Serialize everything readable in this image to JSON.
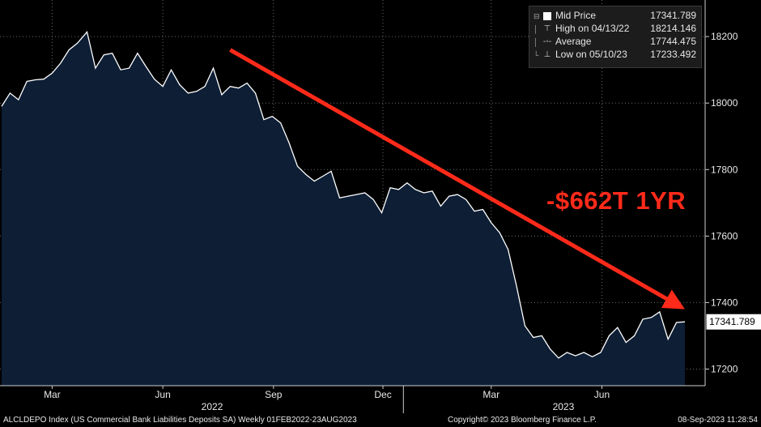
{
  "chart_data": {
    "type": "area",
    "x_range": [
      "2022-02-01",
      "2023-08-23"
    ],
    "ylim": [
      17150,
      18310
    ],
    "grid": true,
    "y_ticks": [
      17200,
      17400,
      17600,
      17800,
      18000,
      18200
    ],
    "y_tick_labels": [
      "17200",
      "17400",
      "17600",
      "17800",
      "18000",
      "18200"
    ],
    "x_tick_labels": [
      {
        "label": "Mar",
        "date": "2022-03-15"
      },
      {
        "label": "Jun",
        "date": "2022-06-15"
      },
      {
        "label": "Sep",
        "date": "2022-09-15"
      },
      {
        "label": "Dec",
        "date": "2022-12-15"
      },
      {
        "label": "Mar",
        "date": "2023-03-15"
      },
      {
        "label": "Jun",
        "date": "2023-06-15"
      }
    ],
    "year_labels": [
      {
        "label": "2022",
        "date": "2022-07-26"
      },
      {
        "label": "2023",
        "date": "2023-05-14"
      }
    ],
    "year_divider_date": "2023-01-01",
    "series": [
      {
        "name": "Mid Price",
        "color": "#ffffff",
        "fill": "#0d1e35",
        "points": [
          [
            "2022-02-01",
            17990
          ],
          [
            "2022-02-08",
            18030
          ],
          [
            "2022-02-15",
            18010
          ],
          [
            "2022-02-22",
            18065
          ],
          [
            "2022-03-01",
            18070
          ],
          [
            "2022-03-08",
            18072
          ],
          [
            "2022-03-15",
            18090
          ],
          [
            "2022-03-22",
            18120
          ],
          [
            "2022-03-29",
            18160
          ],
          [
            "2022-04-05",
            18180
          ],
          [
            "2022-04-13",
            18214
          ],
          [
            "2022-04-20",
            18105
          ],
          [
            "2022-04-27",
            18145
          ],
          [
            "2022-05-04",
            18150
          ],
          [
            "2022-05-11",
            18100
          ],
          [
            "2022-05-18",
            18105
          ],
          [
            "2022-05-25",
            18150
          ],
          [
            "2022-06-01",
            18110
          ],
          [
            "2022-06-08",
            18072
          ],
          [
            "2022-06-15",
            18050
          ],
          [
            "2022-06-22",
            18100
          ],
          [
            "2022-06-29",
            18055
          ],
          [
            "2022-07-06",
            18030
          ],
          [
            "2022-07-13",
            18035
          ],
          [
            "2022-07-20",
            18050
          ],
          [
            "2022-07-27",
            18105
          ],
          [
            "2022-08-03",
            18025
          ],
          [
            "2022-08-10",
            18050
          ],
          [
            "2022-08-17",
            18045
          ],
          [
            "2022-08-24",
            18060
          ],
          [
            "2022-08-31",
            18030
          ],
          [
            "2022-09-07",
            17950
          ],
          [
            "2022-09-14",
            17960
          ],
          [
            "2022-09-21",
            17940
          ],
          [
            "2022-09-28",
            17880
          ],
          [
            "2022-10-05",
            17810
          ],
          [
            "2022-10-12",
            17785
          ],
          [
            "2022-10-19",
            17765
          ],
          [
            "2022-10-26",
            17780
          ],
          [
            "2022-11-02",
            17795
          ],
          [
            "2022-11-09",
            17715
          ],
          [
            "2022-11-16",
            17720
          ],
          [
            "2022-11-23",
            17725
          ],
          [
            "2022-11-30",
            17730
          ],
          [
            "2022-12-07",
            17710
          ],
          [
            "2022-12-14",
            17670
          ],
          [
            "2022-12-21",
            17745
          ],
          [
            "2022-12-28",
            17740
          ],
          [
            "2023-01-04",
            17760
          ],
          [
            "2023-01-11",
            17740
          ],
          [
            "2023-01-18",
            17730
          ],
          [
            "2023-01-25",
            17735
          ],
          [
            "2023-02-01",
            17690
          ],
          [
            "2023-02-08",
            17720
          ],
          [
            "2023-02-15",
            17725
          ],
          [
            "2023-02-22",
            17710
          ],
          [
            "2023-03-01",
            17675
          ],
          [
            "2023-03-08",
            17680
          ],
          [
            "2023-03-15",
            17640
          ],
          [
            "2023-03-22",
            17610
          ],
          [
            "2023-03-29",
            17560
          ],
          [
            "2023-04-05",
            17450
          ],
          [
            "2023-04-12",
            17330
          ],
          [
            "2023-04-19",
            17295
          ],
          [
            "2023-04-26",
            17300
          ],
          [
            "2023-05-03",
            17260
          ],
          [
            "2023-05-10",
            17233
          ],
          [
            "2023-05-17",
            17250
          ],
          [
            "2023-05-24",
            17240
          ],
          [
            "2023-05-31",
            17250
          ],
          [
            "2023-06-07",
            17237
          ],
          [
            "2023-06-14",
            17250
          ],
          [
            "2023-06-21",
            17300
          ],
          [
            "2023-06-28",
            17325
          ],
          [
            "2023-07-05",
            17280
          ],
          [
            "2023-07-12",
            17300
          ],
          [
            "2023-07-19",
            17350
          ],
          [
            "2023-07-26",
            17355
          ],
          [
            "2023-08-02",
            17372
          ],
          [
            "2023-08-09",
            17290
          ],
          [
            "2023-08-16",
            17340
          ],
          [
            "2023-08-23",
            17342
          ]
        ]
      }
    ]
  },
  "legend": {
    "rows": [
      {
        "label": "Mid Price",
        "value": "17341.789",
        "symbol": "box"
      },
      {
        "label": "High on 04/13/22",
        "value": "18214.146",
        "symbol": "high"
      },
      {
        "label": "Average",
        "value": "17744.475",
        "symbol": "avg"
      },
      {
        "label": "Low on 05/10/23",
        "value": "17233.492",
        "symbol": "low"
      }
    ]
  },
  "last_value_tag": "17341.789",
  "annotation": {
    "text": "-$662T 1YR",
    "arrow_color": "#ff2a1a",
    "arrow_from": [
      "2022-08-10",
      18160
    ],
    "arrow_to": [
      "2023-08-23",
      17380
    ]
  },
  "footer": {
    "left": "ALCLDEPO Index (US Commercial Bank Liabilities Deposits SA)  Weekly 01FEB2022-23AUG2023",
    "center": "Copyright© 2023 Bloomberg Finance L.P.",
    "right": "08-Sep-2023 11:28:54"
  }
}
